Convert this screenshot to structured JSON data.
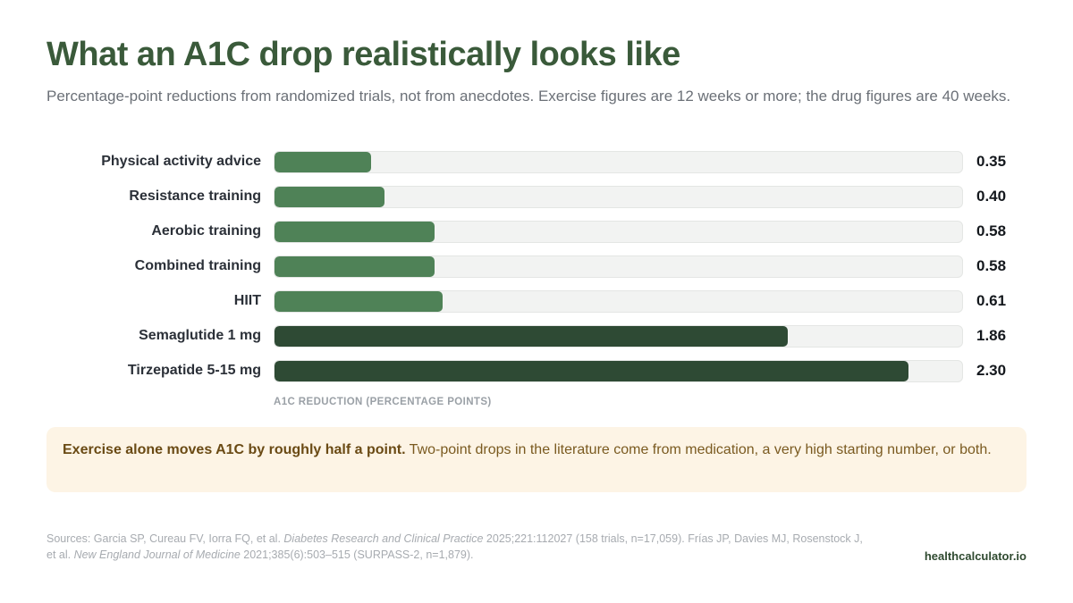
{
  "header": {
    "title": "What an A1C drop realistically looks like",
    "subtitle": "Percentage-point reductions from randomized trials, not from anecdotes. Exercise figures are 12 weeks or more; the drug figures are 40 weeks."
  },
  "chart_data": {
    "type": "bar",
    "orientation": "horizontal",
    "categories": [
      "Physical activity advice",
      "Resistance training",
      "Aerobic training",
      "Combined training",
      "HIIT",
      "Semaglutide 1 mg",
      "Tirzepatide 5-15 mg"
    ],
    "values": [
      0.35,
      0.4,
      0.58,
      0.58,
      0.61,
      1.86,
      2.3
    ],
    "value_labels": [
      "0.35",
      "0.40",
      "0.58",
      "0.58",
      "0.61",
      "1.86",
      "2.30"
    ],
    "bar_groups": [
      "exercise",
      "exercise",
      "exercise",
      "exercise",
      "exercise",
      "drug",
      "drug"
    ],
    "xlabel": "A1C REDUCTION (PERCENTAGE POINTS)",
    "xlim": [
      0,
      2.5
    ],
    "grid": false,
    "colors": {
      "exercise": "#4f8257",
      "drug": "#2e4a34",
      "track": "#f2f3f2"
    }
  },
  "callout": {
    "bold": "Exercise alone moves A1C by roughly half a point.",
    "text": " Two-point drops in the literature come from medication, a very high starting number, or both."
  },
  "footer": {
    "sources_pre": "Sources: Garcia SP, Cureau FV, Iorra FQ, et al. ",
    "journal1": "Diabetes Research and Clinical Practice",
    "sources_mid1": " 2025;221:112027 (158 trials, n=17,059). Frías JP, Davies MJ, Rosenstock J, et al. ",
    "journal2": "New England Journal of Medicine",
    "sources_mid2": " 2021;385(6):503–515 (SURPASS-2, n=1,879).",
    "brand": "healthcalculator.io"
  }
}
